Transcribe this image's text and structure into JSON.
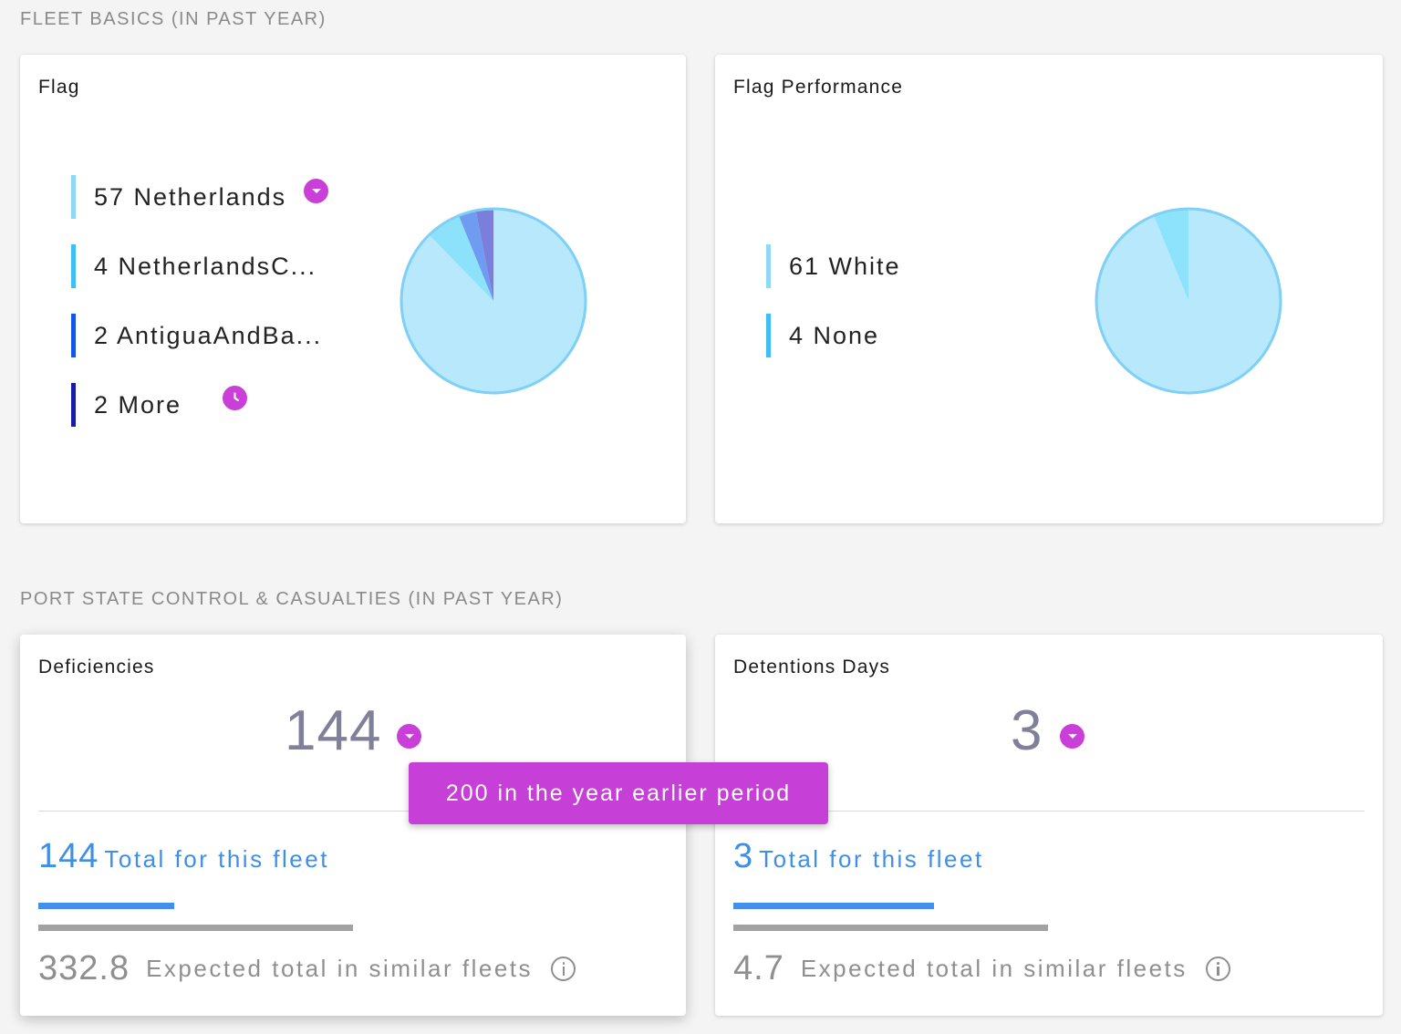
{
  "fleet_basics": {
    "section_title": "FLEET BASICS (IN PAST YEAR)",
    "flag_card": {
      "title": "Flag",
      "legend": [
        {
          "text": "57 Netherlands",
          "color": "#8fd8f8",
          "value": 57
        },
        {
          "text": "4 NetherlandsC...",
          "color": "#3ebef5",
          "value": 4
        },
        {
          "text": "2 AntiguaAndBa...",
          "color": "#1457e6",
          "value": 2
        },
        {
          "text": "2 More",
          "color": "#1a1aa8",
          "value": 2
        }
      ],
      "badges": [
        "chevron-down-icon",
        "clock-icon"
      ]
    },
    "flag_performance_card": {
      "title": "Flag Performance",
      "legend": [
        {
          "text": "61 White",
          "color": "#8fd8f8",
          "value": 61
        },
        {
          "text": "4 None",
          "color": "#3ebef5",
          "value": 4
        }
      ]
    }
  },
  "port_state_control": {
    "section_title": "PORT STATE CONTROL & CASUALTIES (IN PAST YEAR)",
    "deficiencies_card": {
      "title": "Deficiencies",
      "value": "144",
      "total_value": "144",
      "total_label": "Total for this fleet",
      "expected_value": "332.8",
      "expected_label": "Expected total in similar fleets",
      "fleet_fraction": 0.433
    },
    "detentions_card": {
      "title": "Detentions Days",
      "value": "3",
      "total_value": "3",
      "total_label": "Total for this fleet",
      "expected_value": "4.7",
      "expected_label": "Expected total in similar fleets",
      "fleet_fraction": 0.638
    }
  },
  "tooltip": {
    "text": "200 in the year earlier period"
  },
  "colors": {
    "accent": "#c93fd8",
    "primary_blue": "#4390ec",
    "pie_main": "#b7e8fc",
    "pie_border": "#7fd0f6"
  }
}
